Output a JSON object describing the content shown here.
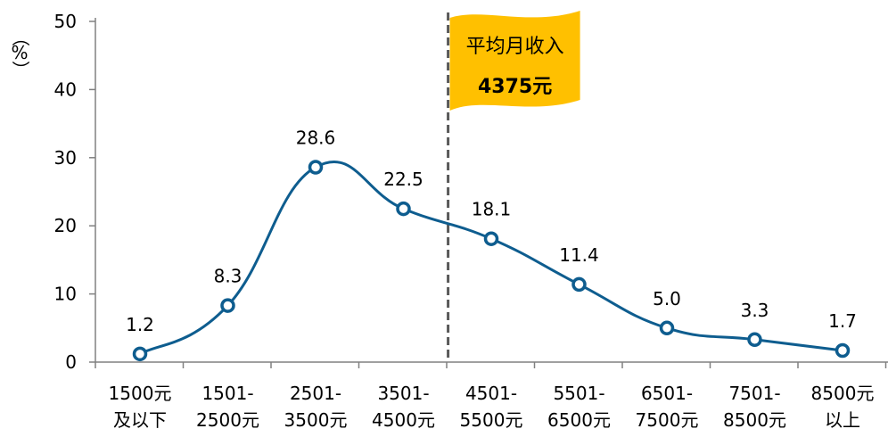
{
  "chart_data": {
    "type": "line",
    "categories": [
      [
        "1500元",
        "及以下"
      ],
      [
        "1501-",
        "2500元"
      ],
      [
        "2501-",
        "3500元"
      ],
      [
        "3501-",
        "4500元"
      ],
      [
        "4501-",
        "5500元"
      ],
      [
        "5501-",
        "6500元"
      ],
      [
        "6501-",
        "7500元"
      ],
      [
        "7501-",
        "8500元"
      ],
      [
        "8500元",
        "以上"
      ]
    ],
    "values": [
      1.2,
      8.3,
      28.6,
      22.5,
      18.1,
      11.4,
      5.0,
      3.3,
      1.7
    ],
    "data_labels": [
      "1.2",
      "8.3",
      "28.6",
      "22.5",
      "18.1",
      "11.4",
      "5.0",
      "3.3",
      "1.7"
    ],
    "ylabel": "（%）",
    "ylim": [
      0,
      50
    ],
    "yticks": [
      0,
      10,
      20,
      30,
      40,
      50
    ],
    "grid": false,
    "series_color": "#0e5d8f",
    "marker_fill": "#ffffff",
    "annotation": {
      "title": "平均月收入",
      "value": "4375元",
      "position_value": 4375,
      "flag_color": "#ffc000",
      "line_color": "#595959"
    }
  }
}
